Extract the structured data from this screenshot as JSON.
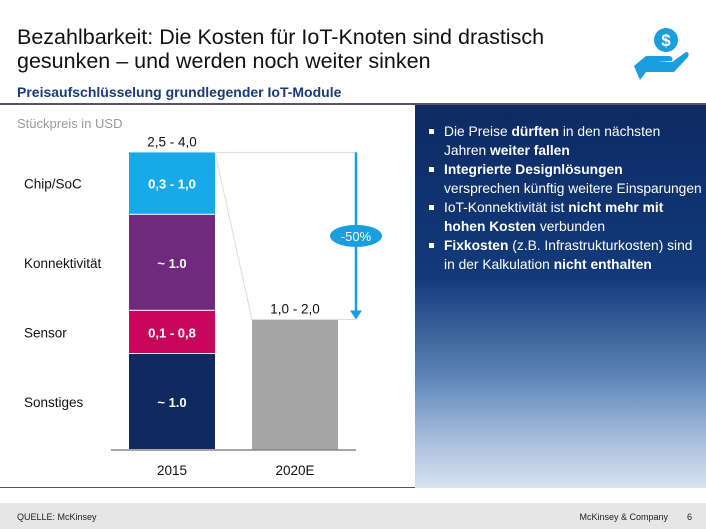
{
  "header": {
    "title": "Bezahlbarkeit: Die Kosten für IoT-Knoten sind drastisch gesunken – und werden noch weiter sinken",
    "subtitle": "Preisaufschlüsselung grundlegender IoT-Module",
    "icon": "hand-dollar-coin-icon",
    "accent": "#1a9ee0"
  },
  "chart_data": {
    "type": "bar",
    "stacked": true,
    "ylabel": "Stückpreis in USD",
    "categories": [
      "2015",
      "2020E"
    ],
    "segments": [
      {
        "name": "Sonstiges",
        "label": "~ 1.0",
        "value": 1.0,
        "color": "#0e2a5e"
      },
      {
        "name": "Sensor",
        "label": "0,1 - 0,8",
        "value": 0.45,
        "color": "#c8065c"
      },
      {
        "name": "Konnektivität",
        "label": "~ 1.0",
        "value": 1.0,
        "color": "#6f2a7e"
      },
      {
        "name": "Chip/SoC",
        "label": "0,3 - 1,0",
        "value": 0.65,
        "color": "#17a9e8"
      }
    ],
    "totals": [
      {
        "category": "2015",
        "label": "2,5 - 4,0",
        "value": 3.1
      },
      {
        "category": "2020E",
        "label": "1,0 - 2,0",
        "value": 1.36,
        "color": "#a6a6a6"
      }
    ],
    "annotation": {
      "label": "-50%",
      "color": "#1a9ee0"
    }
  },
  "panel": {
    "bullets": [
      [
        {
          "t": "Die Preise "
        },
        {
          "t": "dürften",
          "b": true
        },
        {
          "t": " in den nächsten Jahren "
        },
        {
          "t": "weiter fallen",
          "b": true
        }
      ],
      [
        {
          "t": "Integrierte Designlösungen",
          "b": true
        },
        {
          "t": " versprechen künftig weitere Einsparungen"
        }
      ],
      [
        {
          "t": "IoT-Konnektivität ist "
        },
        {
          "t": "nicht mehr mit hohen Kosten",
          "b": true
        },
        {
          "t": " verbunden"
        }
      ],
      [
        {
          "t": "Fixkosten",
          "b": true
        },
        {
          "t": " (z.B. Infrastrukturkosten) sind in der Kalkulation "
        },
        {
          "t": "nicht enthalten",
          "b": true
        }
      ]
    ]
  },
  "footer": {
    "source": "QUELLE: McKinsey",
    "brand": "McKinsey & Company",
    "page": "6"
  }
}
